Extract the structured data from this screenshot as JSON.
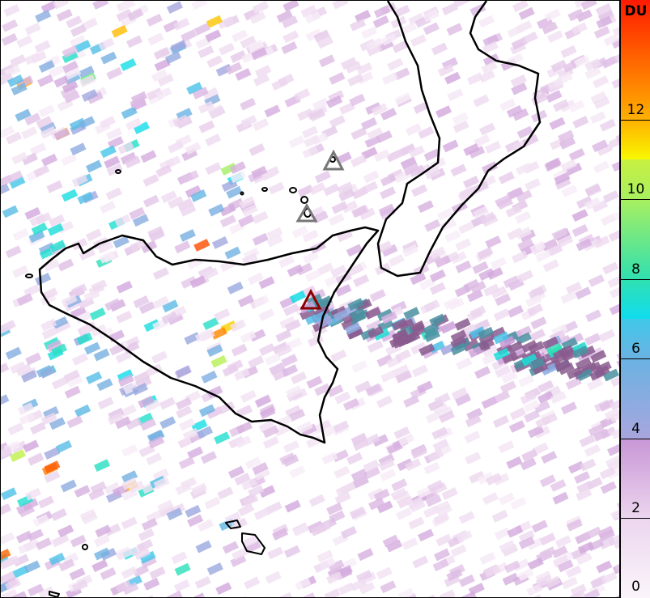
{
  "colorbar": {
    "unit": "DU",
    "range": [
      0,
      15
    ],
    "ticks": [
      "0",
      "2",
      "4",
      "6",
      "8",
      "10",
      "12"
    ],
    "stops": [
      {
        "v": 0,
        "c": "#fbf5fb"
      },
      {
        "v": 2,
        "c": "#ecd6ee"
      },
      {
        "v": 4,
        "c": "#c896d6"
      },
      {
        "v": 4.001,
        "c": "#a8a6de"
      },
      {
        "v": 6,
        "c": "#6ab2e2"
      },
      {
        "v": 7,
        "c": "#40c8ea"
      },
      {
        "v": 7.001,
        "c": "#10dcef"
      },
      {
        "v": 8,
        "c": "#30e0b0"
      },
      {
        "v": 10,
        "c": "#a8f060"
      },
      {
        "v": 11,
        "c": "#c8f040"
      },
      {
        "v": 11.001,
        "c": "#f8f800"
      },
      {
        "v": 12,
        "c": "#ffb000"
      },
      {
        "v": 15,
        "c": "#ff1a00"
      }
    ]
  },
  "map": {
    "features": [
      "Sicily coastline",
      "Calabria coastline",
      "Aeolian Islands",
      "Malta"
    ],
    "volcano_markers": [
      {
        "name": "Stromboli",
        "color": "#777777"
      },
      {
        "name": "Vulcano",
        "color": "#777777"
      },
      {
        "name": "Etna",
        "color": "#8b0000"
      }
    ]
  }
}
